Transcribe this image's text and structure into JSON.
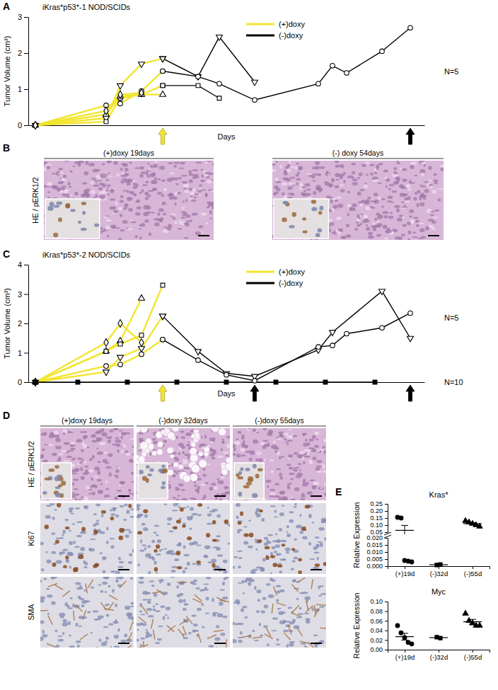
{
  "chart_data": [
    {
      "panel": "A",
      "type": "line",
      "title": "iKras*p53*-1 NOD/SCIDs",
      "x_label": "Days",
      "y_label": "Tumor Volume (cm³)",
      "xlim": [
        0,
        56
      ],
      "ylim": [
        0,
        3
      ],
      "yticks": [
        0,
        1,
        2,
        3
      ],
      "tick_labels": "y",
      "legend": "top",
      "series": [
        {
          "name": "(+)doxy",
          "color": "#f2e530",
          "marker": "triangle-down",
          "x": [
            1,
            11,
            13,
            16,
            19
          ],
          "values": [
            0,
            0.2,
            1.1,
            1.7,
            1.85
          ]
        },
        {
          "name": "(+)doxy",
          "color": "#f2e530",
          "marker": "circle",
          "x": [
            1,
            11,
            13,
            16,
            19
          ],
          "values": [
            0,
            0.55,
            0.6,
            0.95,
            1.5
          ]
        },
        {
          "name": "(+)doxy",
          "color": "#f2e530",
          "marker": "square",
          "x": [
            1,
            11,
            13,
            16,
            19
          ],
          "values": [
            0,
            0.1,
            0.75,
            0.85,
            1.1
          ]
        },
        {
          "name": "(+)doxy",
          "color": "#f2e530",
          "marker": "triangle-up",
          "x": [
            1,
            11,
            13,
            16,
            19
          ],
          "values": [
            0,
            0.3,
            0.8,
            0.85,
            0.85
          ]
        },
        {
          "name": "(+)doxy",
          "color": "#f2e530",
          "marker": "diamond",
          "x": [
            1,
            11,
            13,
            16
          ],
          "values": [
            0,
            0.4,
            0.85,
            0.9
          ]
        },
        {
          "name": "(-)doxy",
          "color": "#000000",
          "marker": "triangle-down",
          "x": [
            19,
            24,
            27,
            32
          ],
          "values": [
            1.85,
            1.35,
            2.45,
            1.2
          ]
        },
        {
          "name": "(-)doxy",
          "color": "#000000",
          "marker": "circle",
          "x": [
            19,
            24,
            27,
            32,
            41,
            43,
            45,
            50,
            54
          ],
          "values": [
            1.5,
            1.35,
            1.15,
            0.7,
            1.15,
            1.65,
            1.45,
            2.05,
            2.7
          ]
        },
        {
          "name": "(-)doxy",
          "color": "#000000",
          "marker": "square",
          "x": [
            19,
            24,
            27
          ],
          "values": [
            1.1,
            1.1,
            0.75
          ]
        }
      ],
      "arrows": [
        {
          "x": 19,
          "color": "#f2e530"
        },
        {
          "x": 54,
          "color": "#000000"
        }
      ],
      "annotations": [
        {
          "text": "N=5",
          "y": 1.5
        }
      ]
    },
    {
      "panel": "C",
      "type": "line",
      "title": "iKras*p53*-2 NOD/SCIDs",
      "x_label": "Days",
      "y_label": "Tumor Volume (cm³)",
      "xlim": [
        0,
        56
      ],
      "ylim": [
        0,
        4
      ],
      "yticks": [
        0,
        1,
        2,
        3,
        4
      ],
      "tick_labels": "y",
      "legend": "top",
      "series": [
        {
          "name": "(+)doxy",
          "color": "#f2e530",
          "marker": "diamond",
          "x": [
            1,
            11,
            13,
            16
          ],
          "values": [
            0,
            1.35,
            2.0,
            1.35
          ]
        },
        {
          "name": "(+)doxy",
          "color": "#f2e530",
          "marker": "triangle-up",
          "x": [
            1,
            11,
            13,
            16
          ],
          "values": [
            0,
            1.05,
            1.4,
            2.85
          ]
        },
        {
          "name": "(+)doxy",
          "color": "#f2e530",
          "marker": "square",
          "x": [
            1,
            11,
            13,
            16,
            19
          ],
          "values": [
            0,
            1.05,
            1.3,
            1.6,
            3.3
          ]
        },
        {
          "name": "(+)doxy",
          "color": "#f2e530",
          "marker": "triangle-down",
          "x": [
            1,
            11,
            13,
            16,
            19
          ],
          "values": [
            0,
            0.35,
            0.85,
            1.15,
            2.25
          ]
        },
        {
          "name": "(+)doxy",
          "color": "#f2e530",
          "marker": "circle",
          "x": [
            1,
            11,
            13,
            16,
            19
          ],
          "values": [
            0,
            0.55,
            0.6,
            0.95,
            1.45
          ]
        },
        {
          "name": "(-)doxy",
          "color": "#000000",
          "marker": "triangle-down",
          "x": [
            19,
            24,
            28,
            32,
            41,
            43,
            50,
            54
          ],
          "values": [
            2.25,
            1.05,
            0.3,
            0.2,
            1.1,
            1.7,
            3.1,
            1.5
          ]
        },
        {
          "name": "(-)doxy",
          "color": "#000000",
          "marker": "circle",
          "x": [
            19,
            24,
            28,
            32,
            41,
            43,
            45,
            50,
            54
          ],
          "values": [
            1.45,
            0.75,
            0.25,
            0.05,
            1.2,
            1.25,
            1.65,
            1.85,
            2.35
          ]
        },
        {
          "name": "(-)doxy",
          "color": "#000000",
          "marker": "filled-square",
          "x": [
            1,
            7,
            14,
            21,
            28,
            35,
            42,
            49
          ],
          "values": [
            0,
            0,
            0,
            0,
            0,
            0,
            0,
            0
          ]
        }
      ],
      "arrows": [
        {
          "x": 19,
          "color": "#f2e530"
        },
        {
          "x": 32,
          "color": "#000000"
        },
        {
          "x": 54,
          "color": "#000000"
        }
      ],
      "annotations": [
        {
          "text": "N=5",
          "y": 2.2
        },
        {
          "text": "N=10",
          "y": 0
        }
      ]
    },
    {
      "panel": "E",
      "type": "dot",
      "title": "Kras*",
      "y_label": "Relative Expression",
      "color": "#000000",
      "categories": [
        "(+)19d",
        "(-)32d",
        "(-)55d"
      ],
      "values": [
        [
          0.155,
          0.15,
          0.004,
          0.0035,
          0.003
        ],
        [
          0.0008,
          0.0012
        ],
        [
          0.13,
          0.12,
          0.11,
          0.1,
          0.09
        ]
      ],
      "markers": [
        "circle",
        "square",
        "triangle-up"
      ],
      "means": [
        0.063,
        0.001,
        0.11
      ],
      "errors": [
        0.035,
        0.0002,
        0.007
      ],
      "y_segments": [
        {
          "ylim": [
            0,
            0.02
          ],
          "yticks": [
            {
              "value": 0,
              "label": "0.000"
            },
            {
              "value": 0.005,
              "label": "0.005"
            },
            {
              "value": 0.01,
              "label": "0.010"
            },
            {
              "value": 0.015,
              "label": "0.015"
            },
            {
              "value": 0.02,
              "label": "0.020"
            }
          ]
        },
        {
          "ylim": [
            0.05,
            0.25
          ],
          "yticks": [
            0.05,
            {
              "value": 0.1,
              "label": "0.10"
            },
            0.15,
            {
              "value": 0.2,
              "label": "0.20"
            },
            0.25
          ]
        }
      ]
    },
    {
      "type": "dot",
      "title": "Myc",
      "y_label": "Relative Expression",
      "color": "#000000",
      "categories": [
        "(+)19d",
        "(-)32d",
        "(-)55d"
      ],
      "values": [
        [
          0.05,
          0.035,
          0.025,
          0.015,
          0.012
        ],
        [
          0.026,
          0.024
        ],
        [
          0.075,
          0.06,
          0.055,
          0.05,
          0.05
        ]
      ],
      "markers": [
        "circle",
        "square",
        "triangle-up"
      ],
      "means": [
        0.027,
        0.025,
        0.058
      ],
      "errors": [
        0.007,
        0.001,
        0.005
      ],
      "ylim": [
        0,
        0.1
      ],
      "yticks": [
        {
          "value": 0,
          "label": "0.00"
        },
        {
          "value": 0.02,
          "label": "0.02"
        },
        {
          "value": 0.04,
          "label": "0.04"
        },
        {
          "value": 0.06,
          "label": "0.06"
        },
        {
          "value": 0.08,
          "label": "0.08"
        },
        {
          "value": 0.1,
          "label": "0.10"
        }
      ]
    }
  ],
  "image_panels": [
    {
      "panel": "B",
      "column_labels": [
        "(+)doxy 19days",
        "(-) doxy 54days"
      ],
      "row_labels": [
        "HE / pERK1/2"
      ]
    },
    {
      "panel": "D",
      "column_labels": [
        "(+)doxy 19days",
        "(-)doxy 32days",
        "(-)doxy 55days"
      ],
      "row_labels": [
        "HE / pERK1/2",
        "Ki67",
        "SMA"
      ]
    }
  ]
}
